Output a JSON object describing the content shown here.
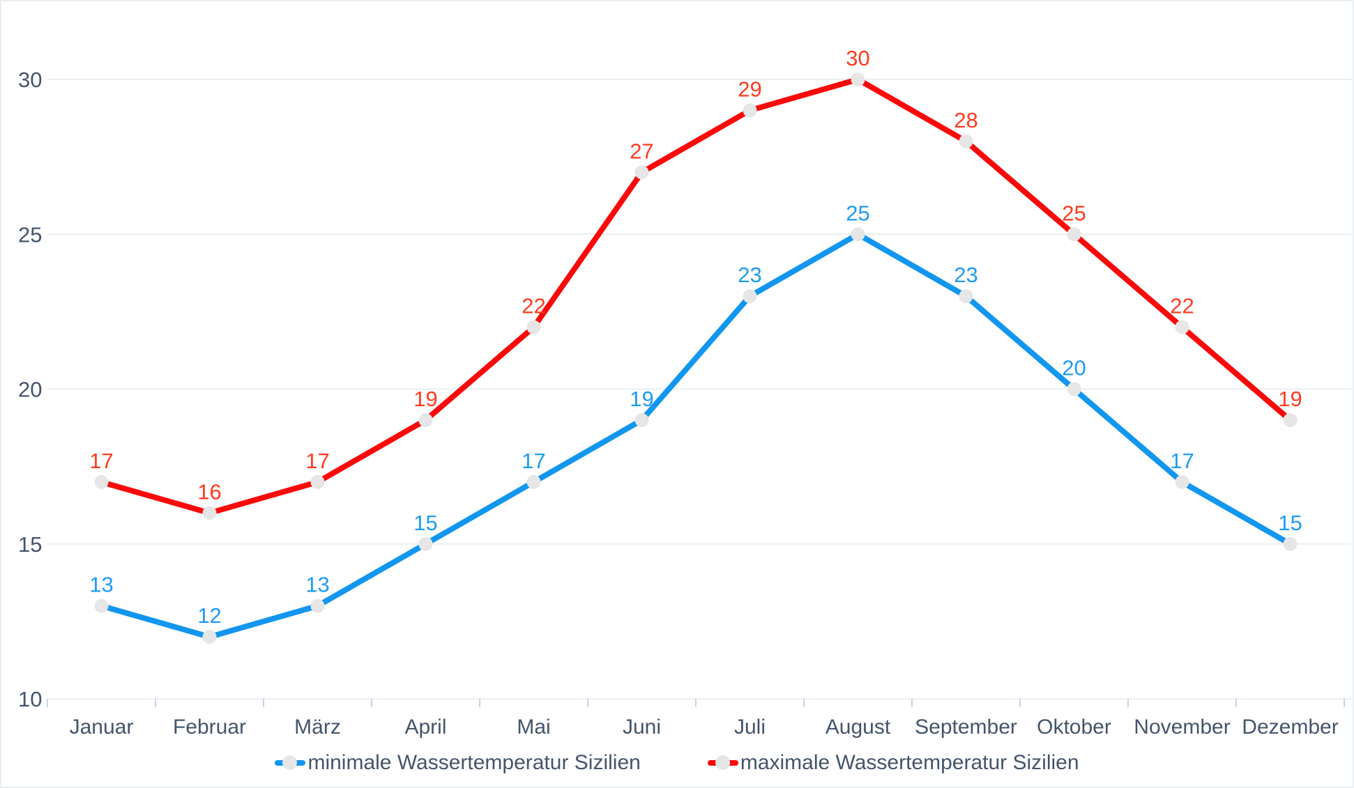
{
  "chart_data": {
    "type": "line",
    "title": "",
    "categories": [
      "Januar",
      "Februar",
      "März",
      "April",
      "Mai",
      "Juni",
      "Juli",
      "August",
      "September",
      "Oktober",
      "November",
      "Dezember"
    ],
    "series": [
      {
        "name": "minimale Wassertemperatur Sizilien",
        "color": "#1296F0",
        "label_color": "#1E9BF1",
        "values": [
          13,
          12,
          13,
          15,
          17,
          19,
          23,
          25,
          23,
          20,
          17,
          15
        ]
      },
      {
        "name": "maximale Wassertemperatur Sizilien",
        "color": "#F90A0A",
        "label_color": "#FF3B1F",
        "values": [
          17,
          16,
          17,
          19,
          22,
          27,
          29,
          30,
          28,
          25,
          22,
          19
        ]
      }
    ],
    "y_ticks": [
      10,
      15,
      20,
      25,
      30
    ],
    "ylim": [
      10,
      32
    ],
    "xlabel": "",
    "ylabel": "",
    "grid": true,
    "legend_position": "bottom",
    "point_marker_color": "#E6E6E6",
    "axis_text_color": "#44546A",
    "gridline_color": "#E4E9EF",
    "tick_color": "#C9D2DC"
  },
  "legend": {
    "items": [
      {
        "label": "minimale Wassertemperatur Sizilien",
        "color": "#1296F0",
        "marker": "line-dot-icon"
      },
      {
        "label": "maximale Wassertemperatur Sizilien",
        "color": "#F90A0A",
        "marker": "line-dot-icon"
      }
    ]
  }
}
